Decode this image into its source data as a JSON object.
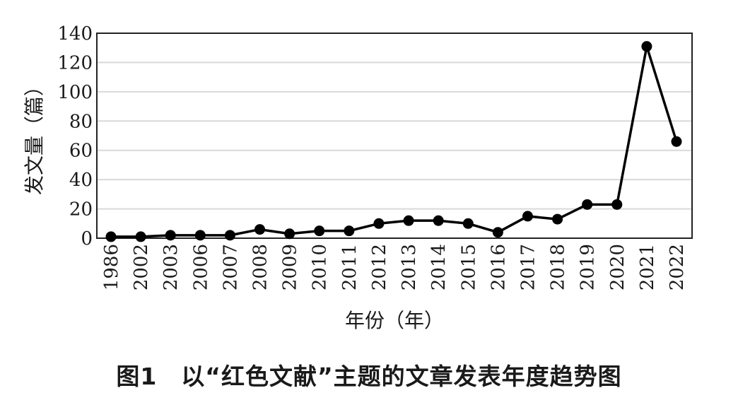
{
  "caption": "图1　以“红色文献”主题的文章发表年度趋势图",
  "chart_data": {
    "type": "line",
    "title": "",
    "xlabel": "年份（年）",
    "ylabel": "发文量（篇）",
    "ylim": [
      0,
      140
    ],
    "yticks": [
      "0",
      "20",
      "40",
      "60",
      "80",
      "100",
      "120",
      "140"
    ],
    "grid": true,
    "categories": [
      "1986",
      "2002",
      "2003",
      "2006",
      "2007",
      "2008",
      "2009",
      "2010",
      "2011",
      "2012",
      "2013",
      "2014",
      "2015",
      "2016",
      "2017",
      "2018",
      "2019",
      "2020",
      "2021",
      "2022"
    ],
    "series": [
      {
        "values": [
          1,
          1,
          2,
          2,
          2,
          6,
          3,
          5,
          5,
          10,
          12,
          12,
          10,
          4,
          15,
          13,
          23,
          23,
          131,
          66
        ]
      }
    ],
    "line_color": "#000000",
    "grid_color": "#d9d9d9"
  }
}
